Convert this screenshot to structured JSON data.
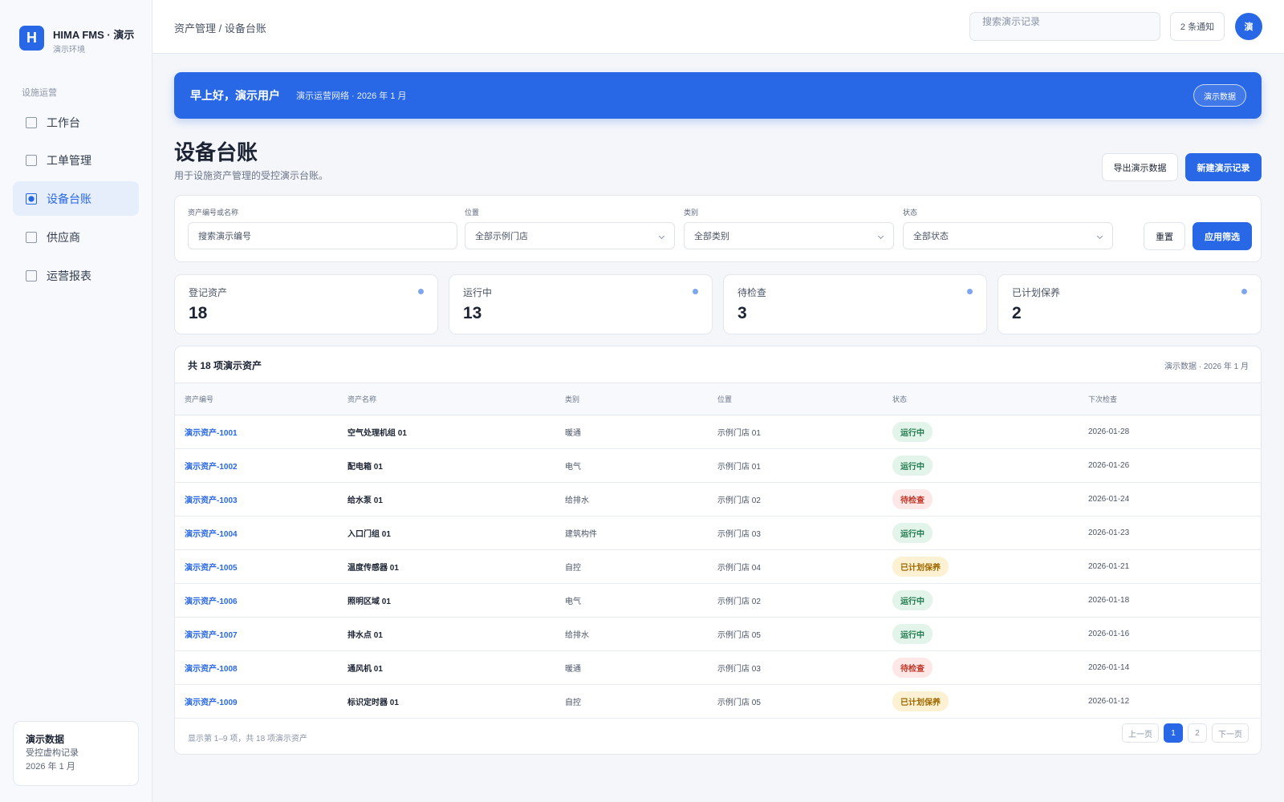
{
  "sidebar": {
    "logo": "H",
    "brand": "HIMA FMS · 演示",
    "env": "演示环境",
    "section": "设施运营",
    "nav": [
      "工作台",
      "工单管理",
      "设备台账",
      "供应商",
      "运营报表"
    ],
    "footer": {
      "title": "演示数据",
      "line1": "受控虚构记录",
      "line2": "2026 年 1 月"
    }
  },
  "topbar": {
    "breadcrumb": "资产管理 / 设备台账",
    "search": "搜索演示记录",
    "notifications": "2 条通知",
    "avatar": "演"
  },
  "banner": {
    "greeting": "早上好，演示用户",
    "subtitle": "演示运营网络 · 2026 年 1 月",
    "badge": "演示数据"
  },
  "page": {
    "title": "设备台账",
    "subtitle": "用于设施资产管理的受控演示台账。",
    "export": "导出演示数据",
    "create": "新建演示记录"
  },
  "filters": {
    "fields": [
      {
        "label": "资产编号或名称",
        "placeholder": "搜索演示编号"
      },
      {
        "label": "位置",
        "placeholder": "全部示例门店"
      },
      {
        "label": "类别",
        "placeholder": "全部类别"
      },
      {
        "label": "状态",
        "placeholder": "全部状态"
      }
    ],
    "reset": "重置",
    "apply": "应用筛选"
  },
  "stats": [
    {
      "label": "登记资产",
      "value": "18"
    },
    {
      "label": "运行中",
      "value": "13"
    },
    {
      "label": "待检查",
      "value": "3"
    },
    {
      "label": "已计划保养",
      "value": "2"
    }
  ],
  "table": {
    "title": "共 18 项演示资产",
    "meta": "演示数据 · 2026 年 1 月",
    "columns": [
      "资产编号",
      "资产名称",
      "类别",
      "位置",
      "状态",
      "下次检查"
    ],
    "rows": [
      [
        "演示资产-1001",
        "空气处理机组 01",
        "暖通",
        "示例门店 01",
        "运行中",
        "2026-01-28"
      ],
      [
        "演示资产-1002",
        "配电箱 01",
        "电气",
        "示例门店 01",
        "运行中",
        "2026-01-26"
      ],
      [
        "演示资产-1003",
        "给水泵 01",
        "给排水",
        "示例门店 02",
        "待检查",
        "2026-01-24"
      ],
      [
        "演示资产-1004",
        "入口门组 01",
        "建筑构件",
        "示例门店 03",
        "运行中",
        "2026-01-23"
      ],
      [
        "演示资产-1005",
        "温度传感器 01",
        "自控",
        "示例门店 04",
        "已计划保养",
        "2026-01-21"
      ],
      [
        "演示资产-1006",
        "照明区域 01",
        "电气",
        "示例门店 02",
        "运行中",
        "2026-01-18"
      ],
      [
        "演示资产-1007",
        "排水点 01",
        "给排水",
        "示例门店 05",
        "运行中",
        "2026-01-16"
      ],
      [
        "演示资产-1008",
        "通风机 01",
        "暖通",
        "示例门店 03",
        "待检查",
        "2026-01-14"
      ],
      [
        "演示资产-1009",
        "标识定时器 01",
        "自控",
        "示例门店 05",
        "已计划保养",
        "2026-01-12"
      ]
    ],
    "status_colors": {
      "运行中": {
        "fg": "#1f7a4d",
        "bg": "#e3f4ea"
      },
      "待检查": {
        "fg": "#c0392b",
        "bg": "#fde7e7"
      },
      "已计划保养": {
        "fg": "#a06a00",
        "bg": "#fdf1d4"
      }
    },
    "summary": "显示第 1–9 项，共 18 项演示资产",
    "pagination": {
      "prev": "上一页",
      "pages": [
        "1",
        "2"
      ],
      "next": "下一页"
    }
  }
}
